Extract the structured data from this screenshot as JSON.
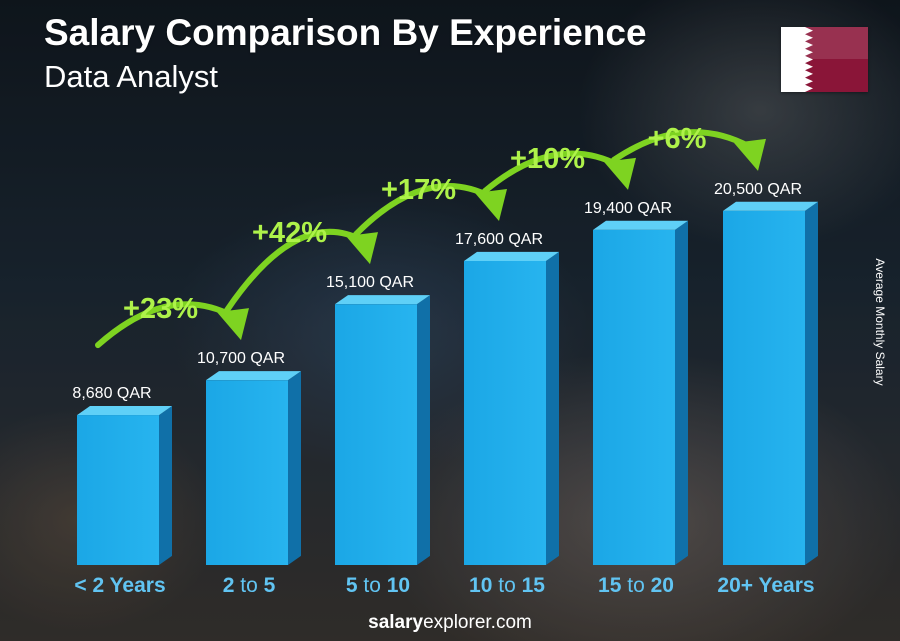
{
  "header": {
    "title": "Salary Comparison By Experience",
    "subtitle": "Data Analyst"
  },
  "side_label": "Average Monthly Salary",
  "footer": {
    "brand_bold": "salary",
    "brand_rest": "explorer.com"
  },
  "colors": {
    "bar_front": "#1ba7e6",
    "bar_side": "#1070a8",
    "bar_top": "#5fd0f7",
    "arrow_green": "#7ed321",
    "pct_text": "#aef24a",
    "x_label": "#61c4f2",
    "flag_maroon": "#8a1538"
  },
  "chart_data": {
    "type": "bar",
    "title": "Salary Comparison By Experience",
    "subtitle": "Data Analyst",
    "ylabel": "Average Monthly Salary",
    "unit": "QAR",
    "categories": [
      {
        "parts": [
          {
            "text": "< 2 Years",
            "bold": true
          }
        ]
      },
      {
        "parts": [
          {
            "text": "2",
            "bold": true
          },
          {
            "text": " to ",
            "bold": false
          },
          {
            "text": "5",
            "bold": true
          }
        ]
      },
      {
        "parts": [
          {
            "text": "5",
            "bold": true
          },
          {
            "text": " to ",
            "bold": false
          },
          {
            "text": "10",
            "bold": true
          }
        ]
      },
      {
        "parts": [
          {
            "text": "10",
            "bold": true
          },
          {
            "text": " to ",
            "bold": false
          },
          {
            "text": "15",
            "bold": true
          }
        ]
      },
      {
        "parts": [
          {
            "text": "15",
            "bold": true
          },
          {
            "text": " to ",
            "bold": false
          },
          {
            "text": "20",
            "bold": true
          }
        ]
      },
      {
        "parts": [
          {
            "text": "20+ Years",
            "bold": true
          }
        ]
      }
    ],
    "values": [
      8680,
      10700,
      15100,
      17600,
      19400,
      20500
    ],
    "value_labels": [
      "8,680 QAR",
      "10,700 QAR",
      "15,100 QAR",
      "17,600 QAR",
      "19,400 QAR",
      "20,500 QAR"
    ],
    "increases": [
      "+23%",
      "+42%",
      "+17%",
      "+10%",
      "+6%"
    ],
    "ylim": [
      0,
      22000
    ],
    "grid": false,
    "legend": "none"
  }
}
